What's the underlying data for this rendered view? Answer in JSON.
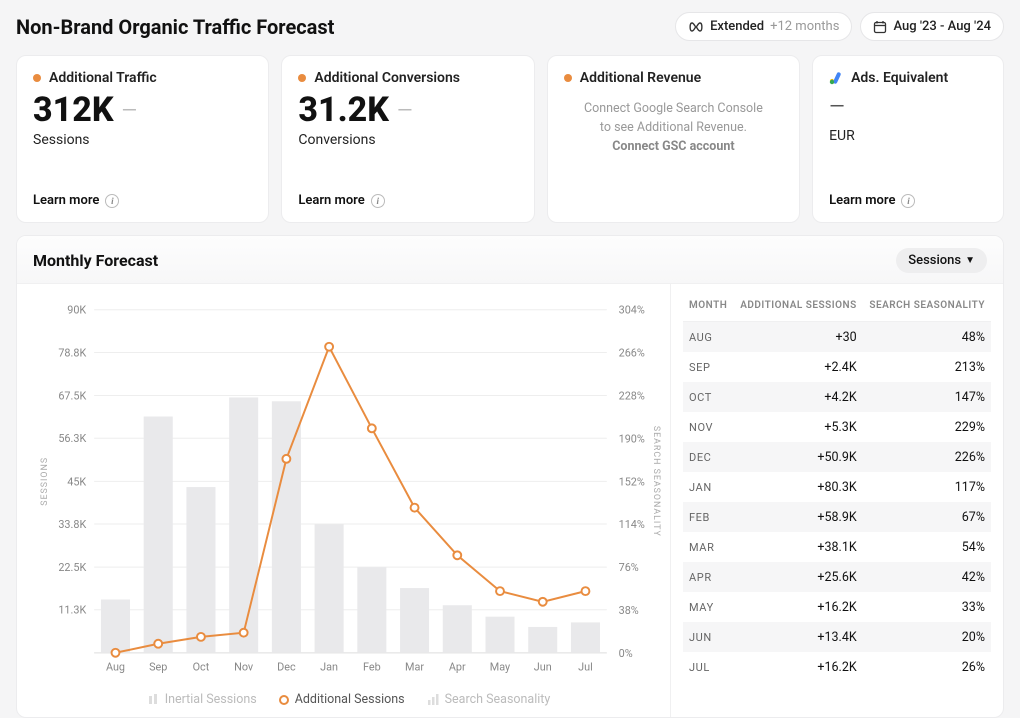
{
  "header": {
    "title": "Non-Brand Organic Traffic Forecast",
    "extended_label": "Extended",
    "extended_suffix": "+12 months",
    "date_range": "Aug '23 - Aug '24"
  },
  "cards": {
    "traffic": {
      "title": "Additional Traffic",
      "value": "312K",
      "sub": "Sessions",
      "learn": "Learn more"
    },
    "conversions": {
      "title": "Additional Conversions",
      "value": "31.2K",
      "sub": "Conversions",
      "learn": "Learn more"
    },
    "revenue": {
      "title": "Additional Revenue",
      "placeholder_line1": "Connect Google Search Console",
      "placeholder_line2": "to see Additional Revenue.",
      "placeholder_cta": "Connect GSC account"
    },
    "ads": {
      "title": "Ads. Equivalent",
      "value": "—",
      "sub": "EUR",
      "learn": "Learn more"
    }
  },
  "forecast": {
    "title": "Monthly Forecast",
    "dropdown": "Sessions",
    "legend": {
      "inertial": "Inertial Sessions",
      "additional": "Additional Sessions",
      "seasonality": "Search Seasonality"
    },
    "table": {
      "columns": [
        "MONTH",
        "ADDITIONAL SESSIONS",
        "SEARCH SEASONALITY"
      ],
      "rows": [
        {
          "month": "AUG",
          "sessions": "+30",
          "pct": "48%"
        },
        {
          "month": "SEP",
          "sessions": "+2.4K",
          "pct": "213%"
        },
        {
          "month": "OCT",
          "sessions": "+4.2K",
          "pct": "147%"
        },
        {
          "month": "NOV",
          "sessions": "+5.3K",
          "pct": "229%"
        },
        {
          "month": "DEC",
          "sessions": "+50.9K",
          "pct": "226%"
        },
        {
          "month": "JAN",
          "sessions": "+80.3K",
          "pct": "117%"
        },
        {
          "month": "FEB",
          "sessions": "+58.9K",
          "pct": "67%"
        },
        {
          "month": "MAR",
          "sessions": "+38.1K",
          "pct": "54%"
        },
        {
          "month": "APR",
          "sessions": "+25.6K",
          "pct": "42%"
        },
        {
          "month": "MAY",
          "sessions": "+16.2K",
          "pct": "33%"
        },
        {
          "month": "JUN",
          "sessions": "+13.4K",
          "pct": "20%"
        },
        {
          "month": "JUL",
          "sessions": "+16.2K",
          "pct": "26%"
        }
      ]
    },
    "chart": {
      "type": "bar+line",
      "background": "#ffffff",
      "months": [
        "Aug",
        "Sep",
        "Oct",
        "Nov",
        "Dec",
        "Jan",
        "Feb",
        "Mar",
        "Apr",
        "May",
        "Jun",
        "Jul"
      ],
      "bars_sessions": [
        14000,
        62000,
        43500,
        67000,
        66000,
        33800,
        22500,
        17000,
        12500,
        9500,
        6800,
        8000
      ],
      "bar_color": "#e9e9eb",
      "bar_width_ratio": 0.68,
      "line_additional": [
        30,
        2400,
        4200,
        5300,
        50900,
        80300,
        58900,
        38100,
        25600,
        16200,
        13400,
        16200
      ],
      "line_color": "#e98c3f",
      "marker_style": "circle",
      "marker_fill": "#ffffff",
      "marker_radius": 4,
      "line_width": 2,
      "y_left": {
        "label": "SESSIONS",
        "min": 0,
        "max": 90000,
        "ticks": [
          11300,
          22500,
          33800,
          45000,
          56300,
          67500,
          78800,
          90000
        ],
        "tick_labels": [
          "11.3K",
          "22.5K",
          "33.8K",
          "45K",
          "56.3K",
          "67.5K",
          "78.8K",
          "90K"
        ]
      },
      "y_right": {
        "label": "SEARCH SEASONALITY",
        "min": 0,
        "max": 304,
        "ticks": [
          0,
          38,
          76,
          114,
          152,
          190,
          228,
          266,
          304
        ],
        "tick_labels": [
          "0%",
          "38%",
          "76%",
          "114%",
          "152%",
          "190%",
          "228%",
          "266%",
          "304%"
        ]
      },
      "grid_color": "#eeeeee",
      "axis_font_size": 11,
      "axis_label_font_size": 9
    }
  },
  "colors": {
    "accent": "#e98c3f",
    "card_bg": "#ffffff",
    "page_bg": "#f5f5f6",
    "border": "#ececee",
    "text": "#111111",
    "muted": "#999999"
  }
}
